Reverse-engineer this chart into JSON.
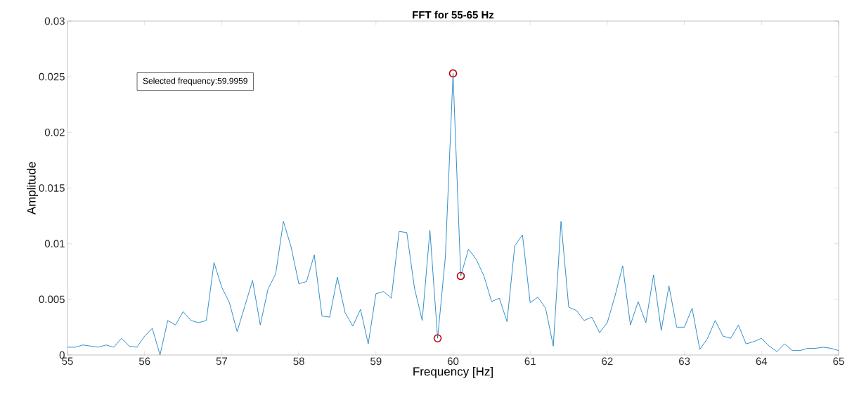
{
  "chart_data": {
    "type": "line",
    "title": "FFT for 55-65 Hz",
    "xlabel": "Frequency [Hz]",
    "ylabel": "Amplitude",
    "annotations": [
      "Selected frequency:59.9959"
    ],
    "x": [
      55.0,
      55.1,
      55.2,
      55.3,
      55.4,
      55.5,
      55.6,
      55.7,
      55.8,
      55.9,
      56.0,
      56.1,
      56.2,
      56.3,
      56.4,
      56.5,
      56.6,
      56.7,
      56.8,
      56.9,
      57.0,
      57.1,
      57.2,
      57.3,
      57.4,
      57.5,
      57.6,
      57.7,
      57.8,
      57.9,
      58.0,
      58.1,
      58.2,
      58.3,
      58.4,
      58.5,
      58.6,
      58.7,
      58.8,
      58.9,
      59.0,
      59.1,
      59.2,
      59.3,
      59.4,
      59.5,
      59.6,
      59.7,
      59.8,
      59.9,
      60.0,
      60.1,
      60.2,
      60.3,
      60.4,
      60.5,
      60.6,
      60.7,
      60.8,
      60.9,
      61.0,
      61.1,
      61.2,
      61.3,
      61.4,
      61.5,
      61.6,
      61.7,
      61.8,
      61.9,
      62.0,
      62.1,
      62.2,
      62.3,
      62.4,
      62.5,
      62.6,
      62.7,
      62.8,
      62.9,
      63.0,
      63.1,
      63.2,
      63.3,
      63.4,
      63.5,
      63.6,
      63.7,
      63.8,
      63.9,
      64.0,
      64.1,
      64.2,
      64.3,
      64.4,
      64.5,
      64.6,
      64.7,
      64.8,
      64.9,
      65.0
    ],
    "series": [
      {
        "color": "#0072bd",
        "values": [
          0.0007,
          0.0007,
          0.0009,
          0.0008,
          0.0007,
          0.0009,
          0.0007,
          0.0015,
          0.0008,
          0.0007,
          0.0017,
          0.0024,
          0.0,
          0.0031,
          0.0027,
          0.0039,
          0.0031,
          0.0029,
          0.0031,
          0.0083,
          0.0061,
          0.0047,
          0.0021,
          0.0044,
          0.0067,
          0.0027,
          0.0059,
          0.0073,
          0.012,
          0.0097,
          0.0064,
          0.0066,
          0.009,
          0.0035,
          0.0034,
          0.007,
          0.0038,
          0.0026,
          0.0041,
          0.001,
          0.0055,
          0.0057,
          0.0051,
          0.0111,
          0.011,
          0.006,
          0.0031,
          0.0112,
          0.0015,
          0.0088,
          0.0253,
          0.0071,
          0.0095,
          0.0086,
          0.0071,
          0.0048,
          0.0051,
          0.003,
          0.0098,
          0.0108,
          0.0047,
          0.0052,
          0.0042,
          0.0008,
          0.012,
          0.0043,
          0.004,
          0.0031,
          0.0034,
          0.002,
          0.0029,
          0.0053,
          0.008,
          0.0027,
          0.0048,
          0.0029,
          0.0072,
          0.0022,
          0.0062,
          0.0025,
          0.0025,
          0.0042,
          0.0005,
          0.0015,
          0.0031,
          0.0017,
          0.0015,
          0.0027,
          0.001,
          0.0012,
          0.0015,
          0.0008,
          0.0003,
          0.001,
          0.0004,
          0.0004,
          0.0006,
          0.0006,
          0.0007,
          0.0006,
          0.0004
        ]
      },
      {
        "type": "scatter",
        "color": "#c00000",
        "marker": "circle",
        "x": [
          59.8,
          60.0,
          60.1
        ],
        "values": [
          0.0015,
          0.0253,
          0.0071
        ]
      }
    ],
    "xlim": [
      55,
      65
    ],
    "xticks": [
      55,
      56,
      57,
      58,
      59,
      60,
      61,
      62,
      63,
      64,
      65
    ],
    "ylim": [
      0,
      0.03
    ],
    "yticks": [
      0,
      0.005,
      0.01,
      0.015,
      0.02,
      0.025,
      0.03
    ]
  }
}
